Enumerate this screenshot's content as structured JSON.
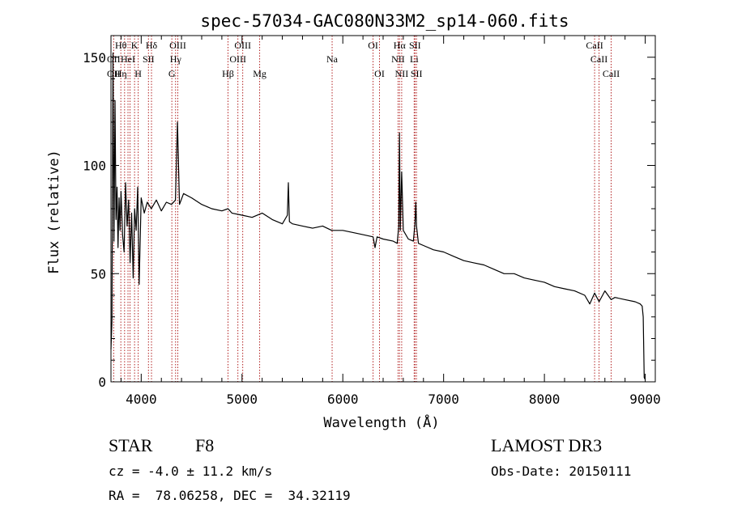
{
  "chart_data": {
    "type": "line",
    "title": "spec-57034-GAC080N33M2_sp14-060.fits",
    "xlabel": "Wavelength (Å)",
    "ylabel": "Flux (relative)",
    "xlim": [
      3700,
      9100
    ],
    "ylim": [
      0,
      160
    ],
    "xticks": [
      4000,
      5000,
      6000,
      7000,
      8000,
      9000
    ],
    "yticks": [
      0,
      50,
      100,
      150
    ],
    "grid": false,
    "line_color": "#000000",
    "marker_color": "#b22222",
    "series": [
      {
        "x": [
          3700,
          3710,
          3720,
          3730,
          3740,
          3750,
          3760,
          3770,
          3780,
          3790,
          3800,
          3815,
          3830,
          3845,
          3860,
          3875,
          3890,
          3905,
          3920,
          3935,
          3950,
          3965,
          3980,
          4000,
          4030,
          4060,
          4100,
          4150,
          4200,
          4250,
          4300,
          4340,
          4360,
          4380,
          4420,
          4500,
          4600,
          4700,
          4800,
          4861,
          4900,
          5000,
          5100,
          5200,
          5300,
          5400,
          5450,
          5460,
          5470,
          5500,
          5600,
          5700,
          5800,
          5890,
          5950,
          6000,
          6100,
          6200,
          6300,
          6320,
          6340,
          6400,
          6500,
          6540,
          6555,
          6562,
          6570,
          6584,
          6600,
          6650,
          6700,
          6716,
          6725,
          6731,
          6750,
          6800,
          6900,
          7000,
          7100,
          7200,
          7300,
          7400,
          7500,
          7600,
          7700,
          7800,
          7900,
          8000,
          8100,
          8200,
          8300,
          8400,
          8450,
          8498,
          8542,
          8600,
          8662,
          8700,
          8800,
          8900,
          8950,
          8970,
          8980,
          8990,
          9000
        ],
        "y": [
          15,
          28,
          152,
          65,
          130,
          75,
          90,
          62,
          85,
          70,
          88,
          68,
          60,
          92,
          72,
          84,
          55,
          78,
          48,
          80,
          70,
          90,
          45,
          85,
          78,
          83,
          80,
          84,
          79,
          83,
          82,
          84,
          120,
          82,
          87,
          85,
          82,
          80,
          79,
          80,
          78,
          77,
          76,
          78,
          75,
          73,
          77,
          92,
          74,
          73,
          72,
          71,
          72,
          70,
          70,
          70,
          69,
          68,
          67,
          62,
          67,
          66,
          65,
          64,
          72,
          115,
          70,
          97,
          70,
          66,
          65,
          73,
          83,
          72,
          64,
          63,
          61,
          60,
          58,
          56,
          55,
          54,
          52,
          50,
          50,
          48,
          47,
          46,
          44,
          43,
          42,
          40,
          36,
          41,
          37,
          42,
          38,
          39,
          38,
          37,
          36,
          35,
          30,
          2,
          1
        ]
      }
    ],
    "line_markers": [
      {
        "x": 3727,
        "upper": "",
        "middle": "OII",
        "lower": "OII"
      },
      {
        "x": 3798,
        "upper": "Hθ",
        "middle": "",
        "lower": "Hη"
      },
      {
        "x": 3835,
        "upper": "",
        "middle": "",
        "lower": ""
      },
      {
        "x": 3869,
        "upper": "",
        "middle": "HeI",
        "lower": ""
      },
      {
        "x": 3889,
        "upper": "",
        "middle": "",
        "lower": ""
      },
      {
        "x": 3934,
        "upper": "K",
        "middle": "",
        "lower": ""
      },
      {
        "x": 3970,
        "upper": "",
        "middle": "",
        "lower": "H"
      },
      {
        "x": 4072,
        "upper": "",
        "middle": "SII",
        "lower": ""
      },
      {
        "x": 4102,
        "upper": "Hδ",
        "middle": "",
        "lower": ""
      },
      {
        "x": 4304,
        "upper": "",
        "middle": "",
        "lower": "G"
      },
      {
        "x": 4341,
        "upper": "",
        "middle": "Hγ",
        "lower": ""
      },
      {
        "x": 4363,
        "upper": "OIII",
        "middle": "",
        "lower": ""
      },
      {
        "x": 4861,
        "upper": "",
        "middle": "",
        "lower": "Hβ"
      },
      {
        "x": 4959,
        "upper": "",
        "middle": "OIII",
        "lower": ""
      },
      {
        "x": 5007,
        "upper": "OIII",
        "middle": "",
        "lower": ""
      },
      {
        "x": 5175,
        "upper": "",
        "middle": "",
        "lower": "Mg"
      },
      {
        "x": 5894,
        "upper": "",
        "middle": "Na",
        "lower": ""
      },
      {
        "x": 6300,
        "upper": "OI",
        "middle": "",
        "lower": ""
      },
      {
        "x": 6364,
        "upper": "",
        "middle": "",
        "lower": "OI"
      },
      {
        "x": 6548,
        "upper": "",
        "middle": "NII",
        "lower": ""
      },
      {
        "x": 6563,
        "upper": "Hα",
        "middle": "",
        "lower": ""
      },
      {
        "x": 6584,
        "upper": "",
        "middle": "",
        "lower": "NII"
      },
      {
        "x": 6708,
        "upper": "",
        "middle": "Li",
        "lower": ""
      },
      {
        "x": 6716,
        "upper": "SII",
        "middle": "",
        "lower": ""
      },
      {
        "x": 6731,
        "upper": "",
        "middle": "",
        "lower": "SII"
      },
      {
        "x": 8498,
        "upper": "CaII",
        "middle": "",
        "lower": ""
      },
      {
        "x": 8542,
        "upper": "",
        "middle": "CaII",
        "lower": ""
      },
      {
        "x": 8662,
        "upper": "",
        "middle": "",
        "lower": "CaII"
      }
    ]
  },
  "footer": {
    "class_label": "STAR",
    "subclass": "F8",
    "survey": "LAMOST DR3",
    "redshift": "cz = -4.0 ± 11.2 km/s",
    "obs_date": "Obs-Date: 20150111",
    "coords": "RA =  78.06258, DEC =  34.32119"
  }
}
